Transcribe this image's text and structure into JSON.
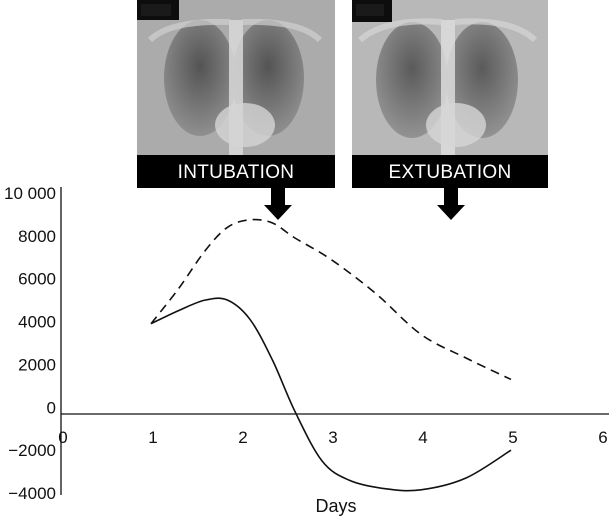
{
  "chart_data": {
    "type": "line",
    "xlabel": "Days",
    "ylabel": "",
    "xlim": [
      0,
      6
    ],
    "ylim": [
      -4000,
      10000
    ],
    "xticks": [
      0,
      1,
      2,
      3,
      4,
      5,
      6
    ],
    "yticks": [
      -4000,
      -2000,
      0,
      2000,
      4000,
      6000,
      8000,
      10000
    ],
    "ytick_labels": [
      "−4000",
      "−2000",
      "0",
      "2000",
      "4000",
      "6000",
      "8000",
      "10 000"
    ],
    "grid": false,
    "legend": "none",
    "series": [
      {
        "style": "dashed",
        "x": [
          1.0,
          1.3,
          1.6,
          1.85,
          2.1,
          2.35,
          2.6,
          3.0,
          3.5,
          4.0,
          4.5,
          5.0
        ],
        "y": [
          3900,
          5500,
          7300,
          8400,
          8750,
          8600,
          7900,
          6900,
          5300,
          3400,
          2300,
          1300
        ]
      },
      {
        "style": "solid",
        "x": [
          1.0,
          1.3,
          1.6,
          1.85,
          2.1,
          2.35,
          2.6,
          2.9,
          3.2,
          3.6,
          4.0,
          4.5,
          5.0
        ],
        "y": [
          3900,
          4500,
          5000,
          5000,
          4100,
          2200,
          -200,
          -2500,
          -3400,
          -3800,
          -3850,
          -3300,
          -2000
        ]
      }
    ],
    "annotations": [
      {
        "label": "INTUBATION",
        "x": 2.3
      },
      {
        "label": "EXTUBATION",
        "x": 4.25
      }
    ]
  },
  "colors": {
    "line": "#111111",
    "axis": "#111111",
    "label_bar": "#000000",
    "label_text": "#ffffff"
  },
  "images": [
    {
      "icon": "chest-xray-image"
    },
    {
      "icon": "chest-xray-image"
    }
  ]
}
